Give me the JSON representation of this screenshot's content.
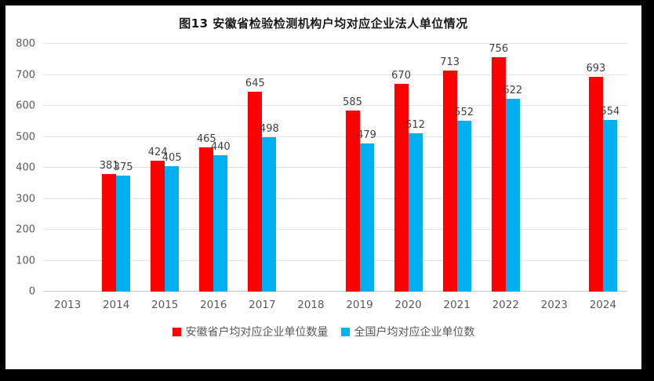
{
  "title": "图13 安徽省检验检测机构户均对应企业法人单位情况",
  "chart_data": {
    "type": "bar",
    "title": "图13 安徽省检验检测机构户均对应企业法人单位情况",
    "categories": [
      "2013",
      "2014",
      "2015",
      "2016",
      "2017",
      "2018",
      "2019",
      "2020",
      "2021",
      "2022",
      "2023",
      "2024"
    ],
    "series": [
      {
        "name": "安徽省户均对应企业单位数量",
        "color": "#FF0000",
        "values": [
          null,
          381,
          424,
          465,
          645,
          null,
          585,
          670,
          713,
          756,
          null,
          693
        ]
      },
      {
        "name": "全国户均对应企业单位数",
        "color": "#00B0F0",
        "values": [
          null,
          375,
          405,
          440,
          498,
          null,
          479,
          512,
          552,
          622,
          null,
          554
        ]
      }
    ],
    "xlabel": "",
    "ylabel": "",
    "ylim": [
      0,
      800
    ],
    "yticks": [
      0,
      100,
      200,
      300,
      400,
      500,
      600,
      700,
      800
    ],
    "grid": true,
    "legend_position": "bottom"
  },
  "colors": {
    "bar_red": "#FF0000",
    "bar_blue": "#00B0F0",
    "axis_text": "#595959",
    "data_label_text": "#404040",
    "gridline": "#E2E2E2",
    "baseline": "#C9C9C9",
    "frame": "#000000"
  }
}
